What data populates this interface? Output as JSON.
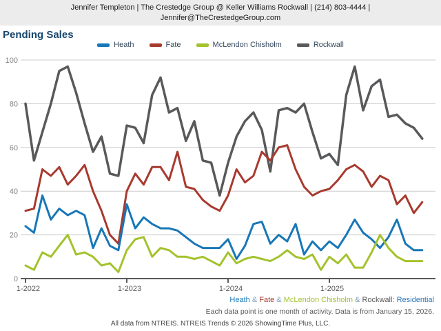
{
  "header": {
    "line1": "Jennifer Templeton | The Crestedge Group @ Keller Williams Rockwall | (214) 803-4444 |",
    "line2": "Jennifer@TheCrestedgeGroup.com"
  },
  "title": "Pending Sales",
  "colors": {
    "heath_blue": "#1777b7",
    "fate_red": "#a8392e",
    "mclendon_green": "#a3c22c",
    "rockwall_gray": "#58595b",
    "title_navy": "#17466e",
    "gridline": "#cccccc",
    "axis": "#58595b",
    "header_bg": "#ececec",
    "residential_link_blue": "#2e75b6"
  },
  "chart_data": {
    "type": "line",
    "title": "Pending Sales",
    "x_start_label": "1-2022",
    "x_tick_labels": [
      "1-2022",
      "1-2023",
      "1-2024",
      "1-2025"
    ],
    "x_tick_month_indices": [
      0,
      12,
      24,
      36
    ],
    "months_total": 48,
    "x_unit": "month (Jan 2022 - Dec 2025)",
    "y_ticks": [
      0,
      20,
      40,
      60,
      80,
      100
    ],
    "ylim": [
      0,
      100
    ],
    "grid": "horizontal",
    "legend_position": "top-center",
    "series": [
      {
        "name": "Heath",
        "color": "#1777b7",
        "values": [
          24,
          21,
          38,
          27,
          32,
          29,
          31,
          29,
          14,
          23,
          15,
          13,
          34,
          23,
          28,
          25,
          23,
          23,
          22,
          19,
          16,
          14,
          14,
          14,
          18,
          9,
          15,
          25,
          26,
          16,
          20,
          17,
          25,
          11,
          17,
          13,
          17,
          14,
          20,
          27,
          21,
          18,
          14,
          19,
          27,
          16,
          13,
          13
        ]
      },
      {
        "name": "Fate",
        "color": "#a8392e",
        "values": [
          31,
          32,
          50,
          47,
          51,
          43,
          47,
          52,
          40,
          31,
          20,
          16,
          40,
          48,
          43,
          51,
          51,
          45,
          58,
          42,
          41,
          36,
          33,
          31,
          38,
          50,
          44,
          47,
          58,
          54,
          60,
          61,
          50,
          42,
          38,
          40,
          41,
          45,
          50,
          52,
          49,
          42,
          47,
          45,
          34,
          38,
          30,
          35
        ]
      },
      {
        "name": "McLendon Chisholm",
        "color": "#a3c22c",
        "values": [
          6,
          4,
          12,
          10,
          15,
          20,
          11,
          12,
          10,
          6,
          7,
          3,
          13,
          18,
          19,
          10,
          14,
          13,
          10,
          10,
          9,
          10,
          8,
          6,
          12,
          7,
          9,
          10,
          9,
          8,
          10,
          13,
          10,
          9,
          11,
          4,
          10,
          7,
          11,
          5,
          5,
          12,
          20,
          14,
          10,
          8,
          8,
          8
        ]
      },
      {
        "name": "Rockwall",
        "color": "#58595b",
        "values": [
          80,
          54,
          67,
          80,
          95,
          97,
          85,
          71,
          58,
          65,
          48,
          47,
          70,
          69,
          62,
          84,
          92,
          76,
          78,
          63,
          72,
          54,
          53,
          38,
          53,
          65,
          72,
          76,
          68,
          49,
          77,
          78,
          76,
          80,
          67,
          55,
          57,
          52,
          84,
          97,
          77,
          88,
          91,
          74,
          75,
          71,
          69,
          64
        ]
      }
    ]
  },
  "footer": {
    "series_label_segments": [
      {
        "text": "Heath",
        "color": "#1777b7"
      },
      {
        "text": " & ",
        "color": "#7f9fbf"
      },
      {
        "text": "Fate",
        "color": "#a8392e"
      },
      {
        "text": " & ",
        "color": "#7f9fbf"
      },
      {
        "text": "McLendon Chisholm",
        "color": "#a3c22c"
      },
      {
        "text": " & ",
        "color": "#7f9fbf"
      },
      {
        "text": "Rockwall:",
        "color": "#595959"
      },
      {
        "text": " Residential",
        "color": "#2e75b6"
      }
    ],
    "note": "Each data point is one month of activity. Data is from January 15, 2026.",
    "credit": "All data from NTREIS. NTREIS Trends © 2026 ShowingTime Plus, LLC."
  }
}
